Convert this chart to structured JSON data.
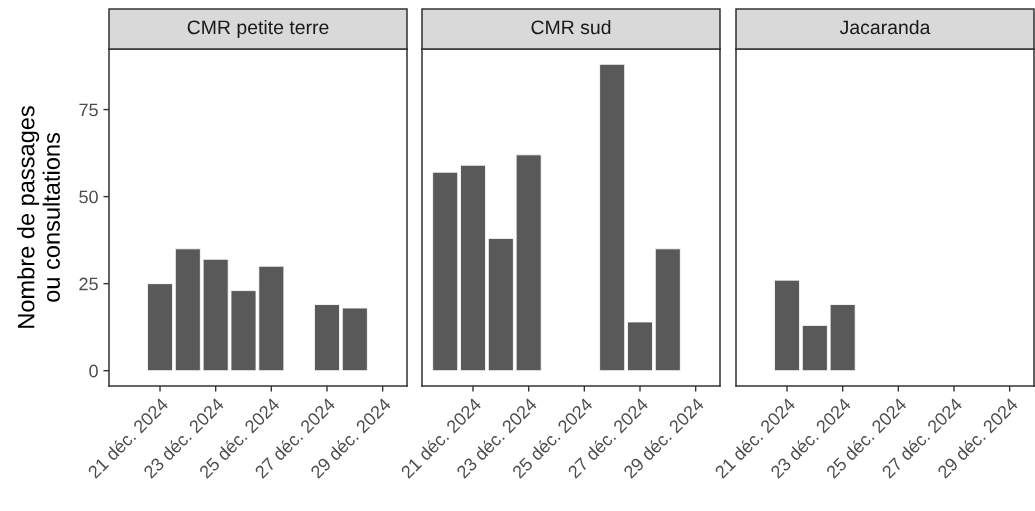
{
  "chart_data": [
    {
      "type": "bar",
      "title": "CMR petite terre",
      "ylabel": "Nombre de passages\nou consultations",
      "x": [
        "2024-12-21",
        "2024-12-22",
        "2024-12-23",
        "2024-12-24",
        "2024-12-25",
        "2024-12-27",
        "2024-12-28"
      ],
      "values": [
        25,
        35,
        32,
        23,
        30,
        19,
        18
      ],
      "color": "#595959",
      "xlim": [
        "2024-12-19T04:00",
        "2024-12-29T21:00"
      ],
      "xticks": [
        {
          "value": "2024-12-21",
          "label": "21 déc. 2024"
        },
        {
          "value": "2024-12-23",
          "label": "23 déc. 2024"
        },
        {
          "value": "2024-12-25",
          "label": "25 déc. 2024"
        },
        {
          "value": "2024-12-27",
          "label": "27 déc. 2024"
        },
        {
          "value": "2024-12-29",
          "label": "29 déc. 2024"
        }
      ],
      "ylim": [
        -4.4,
        92.4
      ],
      "yticks": [
        0,
        25,
        50,
        75
      ],
      "grid": false,
      "legend": false
    },
    {
      "type": "bar",
      "title": "CMR sud",
      "x": [
        "2024-12-20",
        "2024-12-21",
        "2024-12-22",
        "2024-12-23",
        "2024-12-26",
        "2024-12-27",
        "2024-12-28"
      ],
      "values": [
        57,
        59,
        38,
        62,
        88,
        14,
        35
      ],
      "color": "#595959",
      "xlim": [
        "2024-12-19T04:00",
        "2024-12-29T21:00"
      ],
      "xticks": [
        {
          "value": "2024-12-21",
          "label": "21 déc. 2024"
        },
        {
          "value": "2024-12-23",
          "label": "23 déc. 2024"
        },
        {
          "value": "2024-12-25",
          "label": "25 déc. 2024"
        },
        {
          "value": "2024-12-27",
          "label": "27 déc. 2024"
        },
        {
          "value": "2024-12-29",
          "label": "29 déc. 2024"
        }
      ],
      "ylim": [
        -4.4,
        92.4
      ],
      "yticks": [
        0,
        25,
        50,
        75
      ],
      "tick_labels": "x",
      "grid": false,
      "legend": false
    },
    {
      "type": "bar",
      "title": "Jacaranda",
      "x": [
        "2024-12-21",
        "2024-12-22",
        "2024-12-23"
      ],
      "values": [
        26,
        13,
        19
      ],
      "color": "#595959",
      "xlim": [
        "2024-12-19T04:00",
        "2024-12-29T21:00"
      ],
      "xticks": [
        {
          "value": "2024-12-21",
          "label": "21 déc. 2024"
        },
        {
          "value": "2024-12-23",
          "label": "23 déc. 2024"
        },
        {
          "value": "2024-12-25",
          "label": "25 déc. 2024"
        },
        {
          "value": "2024-12-27",
          "label": "27 déc. 2024"
        },
        {
          "value": "2024-12-29",
          "label": "29 déc. 2024"
        }
      ],
      "ylim": [
        -4.4,
        92.4
      ],
      "yticks": [
        0,
        25,
        50,
        75
      ],
      "tick_labels": "x",
      "grid": false,
      "legend": false
    }
  ]
}
